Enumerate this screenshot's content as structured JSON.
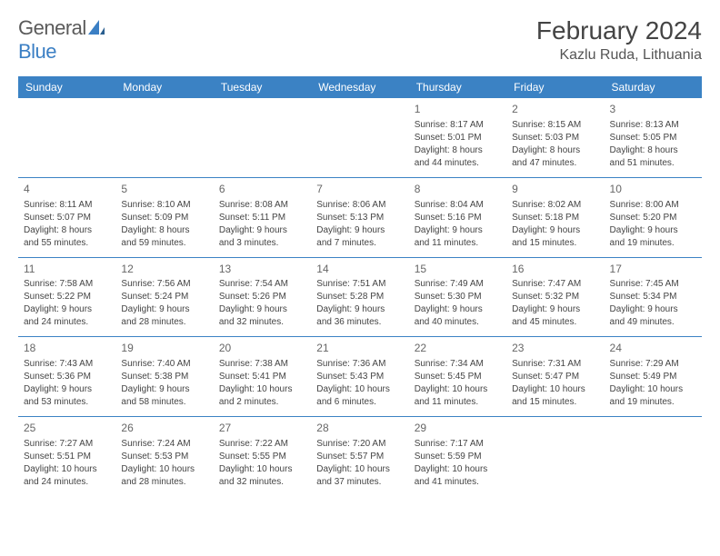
{
  "logo": {
    "text_general": "General",
    "text_blue": "Blue"
  },
  "header": {
    "month_title": "February 2024",
    "location": "Kazlu Ruda, Lithuania"
  },
  "colors": {
    "header_bg": "#3b82c4",
    "header_text": "#ffffff",
    "border": "#3b82c4",
    "body_text": "#444444",
    "day_num": "#666666"
  },
  "day_headers": [
    "Sunday",
    "Monday",
    "Tuesday",
    "Wednesday",
    "Thursday",
    "Friday",
    "Saturday"
  ],
  "weeks": [
    [
      null,
      null,
      null,
      null,
      {
        "num": "1",
        "sunrise": "Sunrise: 8:17 AM",
        "sunset": "Sunset: 5:01 PM",
        "daylight1": "Daylight: 8 hours",
        "daylight2": "and 44 minutes."
      },
      {
        "num": "2",
        "sunrise": "Sunrise: 8:15 AM",
        "sunset": "Sunset: 5:03 PM",
        "daylight1": "Daylight: 8 hours",
        "daylight2": "and 47 minutes."
      },
      {
        "num": "3",
        "sunrise": "Sunrise: 8:13 AM",
        "sunset": "Sunset: 5:05 PM",
        "daylight1": "Daylight: 8 hours",
        "daylight2": "and 51 minutes."
      }
    ],
    [
      {
        "num": "4",
        "sunrise": "Sunrise: 8:11 AM",
        "sunset": "Sunset: 5:07 PM",
        "daylight1": "Daylight: 8 hours",
        "daylight2": "and 55 minutes."
      },
      {
        "num": "5",
        "sunrise": "Sunrise: 8:10 AM",
        "sunset": "Sunset: 5:09 PM",
        "daylight1": "Daylight: 8 hours",
        "daylight2": "and 59 minutes."
      },
      {
        "num": "6",
        "sunrise": "Sunrise: 8:08 AM",
        "sunset": "Sunset: 5:11 PM",
        "daylight1": "Daylight: 9 hours",
        "daylight2": "and 3 minutes."
      },
      {
        "num": "7",
        "sunrise": "Sunrise: 8:06 AM",
        "sunset": "Sunset: 5:13 PM",
        "daylight1": "Daylight: 9 hours",
        "daylight2": "and 7 minutes."
      },
      {
        "num": "8",
        "sunrise": "Sunrise: 8:04 AM",
        "sunset": "Sunset: 5:16 PM",
        "daylight1": "Daylight: 9 hours",
        "daylight2": "and 11 minutes."
      },
      {
        "num": "9",
        "sunrise": "Sunrise: 8:02 AM",
        "sunset": "Sunset: 5:18 PM",
        "daylight1": "Daylight: 9 hours",
        "daylight2": "and 15 minutes."
      },
      {
        "num": "10",
        "sunrise": "Sunrise: 8:00 AM",
        "sunset": "Sunset: 5:20 PM",
        "daylight1": "Daylight: 9 hours",
        "daylight2": "and 19 minutes."
      }
    ],
    [
      {
        "num": "11",
        "sunrise": "Sunrise: 7:58 AM",
        "sunset": "Sunset: 5:22 PM",
        "daylight1": "Daylight: 9 hours",
        "daylight2": "and 24 minutes."
      },
      {
        "num": "12",
        "sunrise": "Sunrise: 7:56 AM",
        "sunset": "Sunset: 5:24 PM",
        "daylight1": "Daylight: 9 hours",
        "daylight2": "and 28 minutes."
      },
      {
        "num": "13",
        "sunrise": "Sunrise: 7:54 AM",
        "sunset": "Sunset: 5:26 PM",
        "daylight1": "Daylight: 9 hours",
        "daylight2": "and 32 minutes."
      },
      {
        "num": "14",
        "sunrise": "Sunrise: 7:51 AM",
        "sunset": "Sunset: 5:28 PM",
        "daylight1": "Daylight: 9 hours",
        "daylight2": "and 36 minutes."
      },
      {
        "num": "15",
        "sunrise": "Sunrise: 7:49 AM",
        "sunset": "Sunset: 5:30 PM",
        "daylight1": "Daylight: 9 hours",
        "daylight2": "and 40 minutes."
      },
      {
        "num": "16",
        "sunrise": "Sunrise: 7:47 AM",
        "sunset": "Sunset: 5:32 PM",
        "daylight1": "Daylight: 9 hours",
        "daylight2": "and 45 minutes."
      },
      {
        "num": "17",
        "sunrise": "Sunrise: 7:45 AM",
        "sunset": "Sunset: 5:34 PM",
        "daylight1": "Daylight: 9 hours",
        "daylight2": "and 49 minutes."
      }
    ],
    [
      {
        "num": "18",
        "sunrise": "Sunrise: 7:43 AM",
        "sunset": "Sunset: 5:36 PM",
        "daylight1": "Daylight: 9 hours",
        "daylight2": "and 53 minutes."
      },
      {
        "num": "19",
        "sunrise": "Sunrise: 7:40 AM",
        "sunset": "Sunset: 5:38 PM",
        "daylight1": "Daylight: 9 hours",
        "daylight2": "and 58 minutes."
      },
      {
        "num": "20",
        "sunrise": "Sunrise: 7:38 AM",
        "sunset": "Sunset: 5:41 PM",
        "daylight1": "Daylight: 10 hours",
        "daylight2": "and 2 minutes."
      },
      {
        "num": "21",
        "sunrise": "Sunrise: 7:36 AM",
        "sunset": "Sunset: 5:43 PM",
        "daylight1": "Daylight: 10 hours",
        "daylight2": "and 6 minutes."
      },
      {
        "num": "22",
        "sunrise": "Sunrise: 7:34 AM",
        "sunset": "Sunset: 5:45 PM",
        "daylight1": "Daylight: 10 hours",
        "daylight2": "and 11 minutes."
      },
      {
        "num": "23",
        "sunrise": "Sunrise: 7:31 AM",
        "sunset": "Sunset: 5:47 PM",
        "daylight1": "Daylight: 10 hours",
        "daylight2": "and 15 minutes."
      },
      {
        "num": "24",
        "sunrise": "Sunrise: 7:29 AM",
        "sunset": "Sunset: 5:49 PM",
        "daylight1": "Daylight: 10 hours",
        "daylight2": "and 19 minutes."
      }
    ],
    [
      {
        "num": "25",
        "sunrise": "Sunrise: 7:27 AM",
        "sunset": "Sunset: 5:51 PM",
        "daylight1": "Daylight: 10 hours",
        "daylight2": "and 24 minutes."
      },
      {
        "num": "26",
        "sunrise": "Sunrise: 7:24 AM",
        "sunset": "Sunset: 5:53 PM",
        "daylight1": "Daylight: 10 hours",
        "daylight2": "and 28 minutes."
      },
      {
        "num": "27",
        "sunrise": "Sunrise: 7:22 AM",
        "sunset": "Sunset: 5:55 PM",
        "daylight1": "Daylight: 10 hours",
        "daylight2": "and 32 minutes."
      },
      {
        "num": "28",
        "sunrise": "Sunrise: 7:20 AM",
        "sunset": "Sunset: 5:57 PM",
        "daylight1": "Daylight: 10 hours",
        "daylight2": "and 37 minutes."
      },
      {
        "num": "29",
        "sunrise": "Sunrise: 7:17 AM",
        "sunset": "Sunset: 5:59 PM",
        "daylight1": "Daylight: 10 hours",
        "daylight2": "and 41 minutes."
      },
      null,
      null
    ]
  ]
}
